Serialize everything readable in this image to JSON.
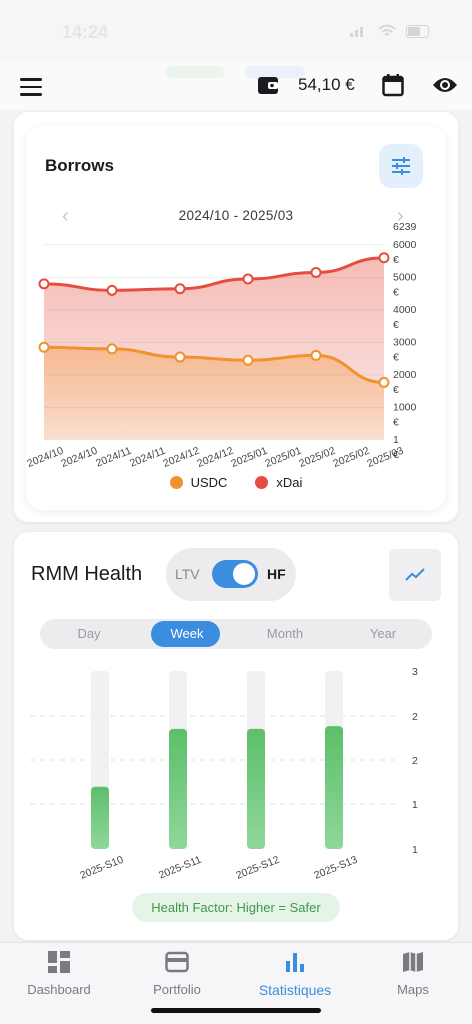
{
  "status": {
    "time": "14:24"
  },
  "header": {
    "balance": "54,10 €"
  },
  "borrows": {
    "title": "Borrows",
    "range": "2024/10 - 2025/03",
    "prev_icon": "chevron-left-icon",
    "next_icon": "chevron-right-icon"
  },
  "chart_data": [
    {
      "type": "area",
      "title": "Borrows",
      "categories": [
        "2024/10",
        "2024/10",
        "2024/11",
        "2024/11",
        "2024/12",
        "2024/12",
        "2025/01",
        "2025/01",
        "2025/02",
        "2025/02",
        "2025/03"
      ],
      "y_ticks": [
        "1 €",
        "1000 €",
        "2000 €",
        "3000 €",
        "4000 €",
        "5000 €",
        "6000 €",
        "6239 €"
      ],
      "ylim": [
        1,
        6239
      ],
      "series": [
        {
          "name": "USDC",
          "color": "#f0922e",
          "x": [
            0,
            2,
            4,
            6,
            8,
            10
          ],
          "values": [
            2850,
            2800,
            2550,
            2450,
            2600,
            1770
          ]
        },
        {
          "name": "xDai",
          "color": "#e44d3f",
          "x": [
            0,
            2,
            4,
            6,
            8,
            10
          ],
          "values": [
            4800,
            4600,
            4650,
            4950,
            5150,
            5600
          ]
        }
      ]
    },
    {
      "type": "bar",
      "title": "RMM Health",
      "categories": [
        "2025-S10",
        "2025-S11",
        "2025-S12",
        "2025-S13"
      ],
      "values": [
        1.7,
        2.35,
        2.35,
        2.38
      ],
      "ylim": [
        1,
        3
      ],
      "y_ticks": [
        "1",
        "1",
        "2",
        "2",
        "3"
      ],
      "color": "#5cbf6a"
    }
  ],
  "health": {
    "title": "RMM Health",
    "ltv_label": "LTV",
    "hf_label": "HF",
    "tabs": [
      "Day",
      "Week",
      "Month",
      "Year"
    ],
    "note": "Health Factor: Higher = Safer"
  },
  "nav": [
    {
      "label": "Dashboard",
      "icon": "dashboard-icon"
    },
    {
      "label": "Portfolio",
      "icon": "wallet-icon"
    },
    {
      "label": "Statistiques",
      "icon": "bar-chart-icon"
    },
    {
      "label": "Maps",
      "icon": "map-icon"
    }
  ],
  "colors": {
    "accent": "#3b8de0",
    "usdc": "#f0922e",
    "xdai": "#e44d3f",
    "health": "#5cbf6a"
  }
}
